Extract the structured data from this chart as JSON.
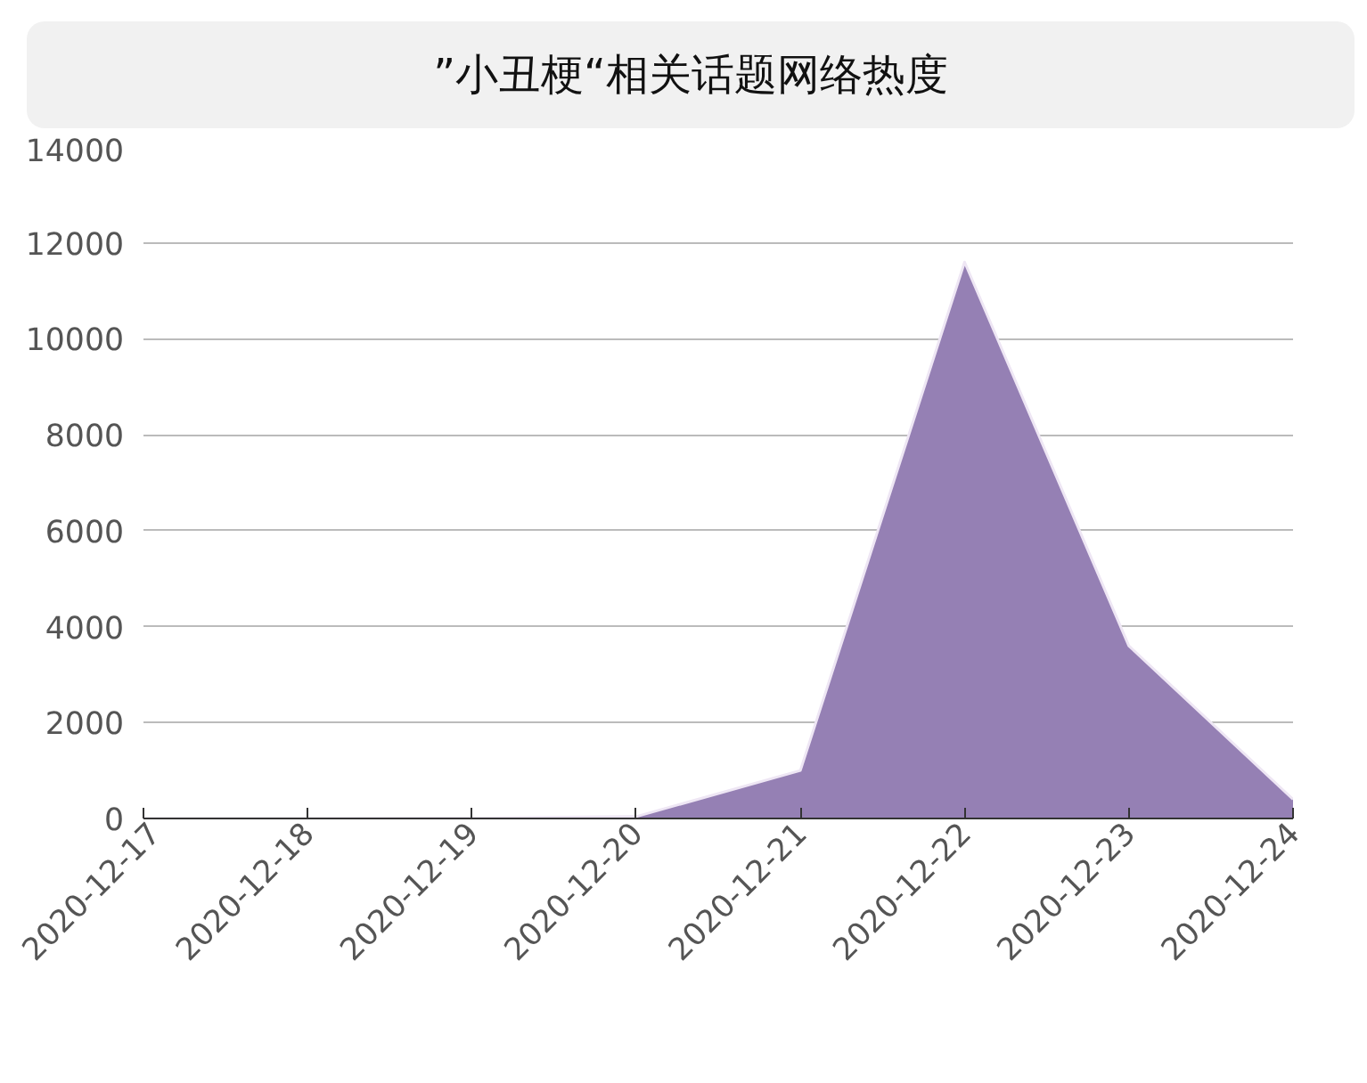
{
  "chart_data": {
    "type": "area",
    "title": "”小丑梗“相关话题网络热度",
    "categories": [
      "2020-12-17",
      "2020-12-18",
      "2020-12-19",
      "2020-12-20",
      "2020-12-21",
      "2020-12-22",
      "2020-12-23",
      "2020-12-24"
    ],
    "series": [
      {
        "color": "#9580b4",
        "values": [
          0,
          0,
          10,
          40,
          1000,
          11600,
          3600,
          400
        ]
      }
    ],
    "ylim": [
      0,
      14000
    ],
    "yticks": [
      0,
      2000,
      4000,
      6000,
      8000,
      10000,
      12000,
      14000
    ],
    "grid": "y"
  }
}
